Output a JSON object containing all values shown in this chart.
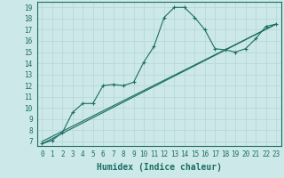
{
  "xlabel": "Humidex (Indice chaleur)",
  "bg_color": "#cde8e8",
  "line_color": "#1a6e64",
  "grid_color": "#b8d8d8",
  "xlim": [
    -0.5,
    23.5
  ],
  "ylim": [
    6.6,
    19.5
  ],
  "xticks": [
    0,
    1,
    2,
    3,
    4,
    5,
    6,
    7,
    8,
    9,
    10,
    11,
    12,
    13,
    14,
    15,
    16,
    17,
    18,
    19,
    20,
    21,
    22,
    23
  ],
  "yticks": [
    7,
    8,
    9,
    10,
    11,
    12,
    13,
    14,
    15,
    16,
    17,
    18,
    19
  ],
  "curve1_x": [
    0,
    1,
    2,
    3,
    4,
    5,
    6,
    7,
    8,
    9,
    10,
    11,
    12,
    13,
    14,
    15,
    16,
    17,
    18,
    19,
    20,
    21,
    22,
    23
  ],
  "curve1_y": [
    6.8,
    7.1,
    7.8,
    9.6,
    10.4,
    10.4,
    12.0,
    12.1,
    12.0,
    12.3,
    14.1,
    15.5,
    18.1,
    19.0,
    19.0,
    18.1,
    17.0,
    15.3,
    15.2,
    15.0,
    15.3,
    16.2,
    17.3,
    17.5
  ],
  "curve2_x": [
    0,
    23
  ],
  "curve2_y": [
    7.0,
    17.5
  ],
  "curve3_x": [
    0,
    23
  ],
  "curve3_y": [
    6.8,
    17.5
  ],
  "tick_fontsize": 5.5,
  "xlabel_fontsize": 7
}
